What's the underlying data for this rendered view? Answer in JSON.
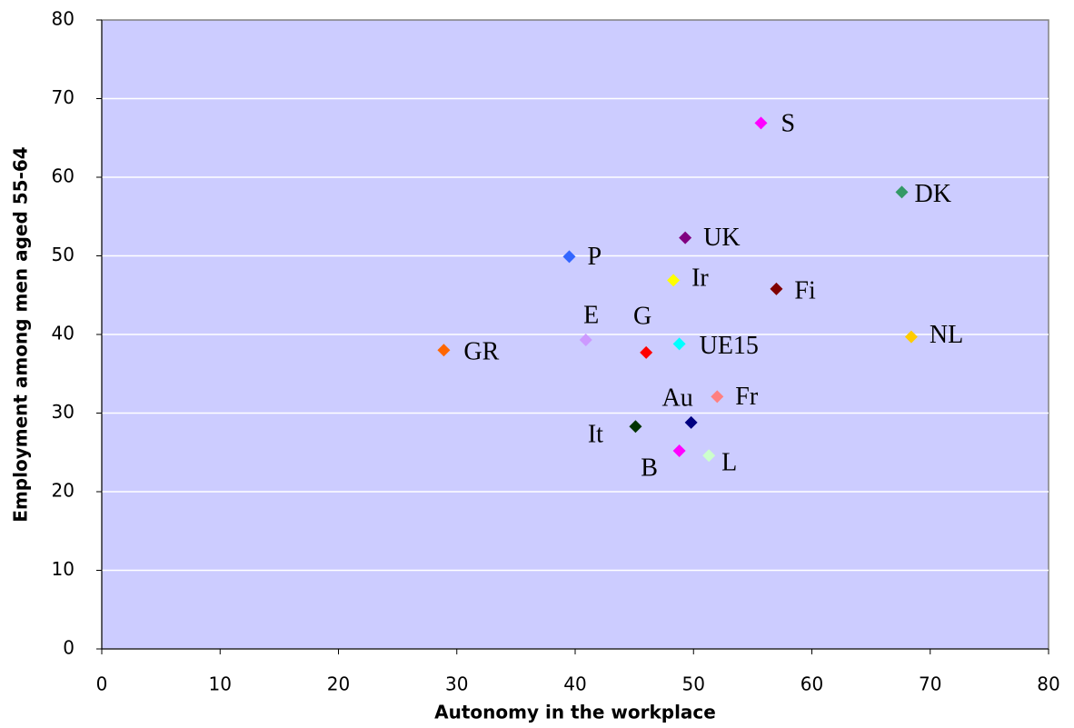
{
  "chart_data": {
    "type": "scatter",
    "xlabel": "Autonomy in the workplace",
    "ylabel": "Employment among men aged 55-64",
    "xlim": [
      0,
      80
    ],
    "xticks": [
      0,
      10,
      20,
      30,
      40,
      50,
      60,
      70,
      80
    ],
    "ylim": [
      0,
      80
    ],
    "yticks": [
      0,
      10,
      20,
      30,
      40,
      50,
      60,
      70,
      80
    ],
    "grid": true,
    "series": [
      {
        "name": "S",
        "color": "#ff00ff",
        "x": [
          55.7
        ],
        "values": [
          66.9
        ]
      },
      {
        "name": "DK",
        "color": "#339966",
        "x": [
          67.6
        ],
        "values": [
          58.1
        ]
      },
      {
        "name": "UK",
        "color": "#800080",
        "x": [
          49.3
        ],
        "values": [
          52.3
        ]
      },
      {
        "name": "P",
        "color": "#3366ff",
        "x": [
          39.5
        ],
        "values": [
          49.9
        ]
      },
      {
        "name": "Ir",
        "color": "#ffff00",
        "x": [
          48.3
        ],
        "values": [
          46.9
        ]
      },
      {
        "name": "Fi",
        "color": "#800000",
        "x": [
          57.0
        ],
        "values": [
          45.8
        ]
      },
      {
        "name": "E",
        "color": "#cc99ff",
        "x": [
          40.9
        ],
        "values": [
          39.3
        ]
      },
      {
        "name": "G",
        "color": "#ff0000",
        "x": [
          46.0
        ],
        "values": [
          37.7
        ]
      },
      {
        "name": "UE15",
        "color": "#00ffff",
        "x": [
          48.8
        ],
        "values": [
          38.8
        ]
      },
      {
        "name": "NL",
        "color": "#ffcc00",
        "x": [
          68.4
        ],
        "values": [
          39.7
        ]
      },
      {
        "name": "GR",
        "color": "#ff6600",
        "x": [
          28.9
        ],
        "values": [
          38.0
        ]
      },
      {
        "name": "Fr",
        "color": "#ff8080",
        "x": [
          52.0
        ],
        "values": [
          32.1
        ]
      },
      {
        "name": "Au",
        "color": "#000080",
        "x": [
          49.8
        ],
        "values": [
          28.8
        ]
      },
      {
        "name": "It",
        "color": "#003300",
        "x": [
          45.1
        ],
        "values": [
          28.3
        ]
      },
      {
        "name": "B",
        "color": "#ff00ff",
        "x": [
          48.8
        ],
        "values": [
          25.2
        ]
      },
      {
        "name": "L",
        "color": "#ccffcc",
        "x": [
          51.3
        ],
        "values": [
          24.6
        ]
      }
    ]
  }
}
